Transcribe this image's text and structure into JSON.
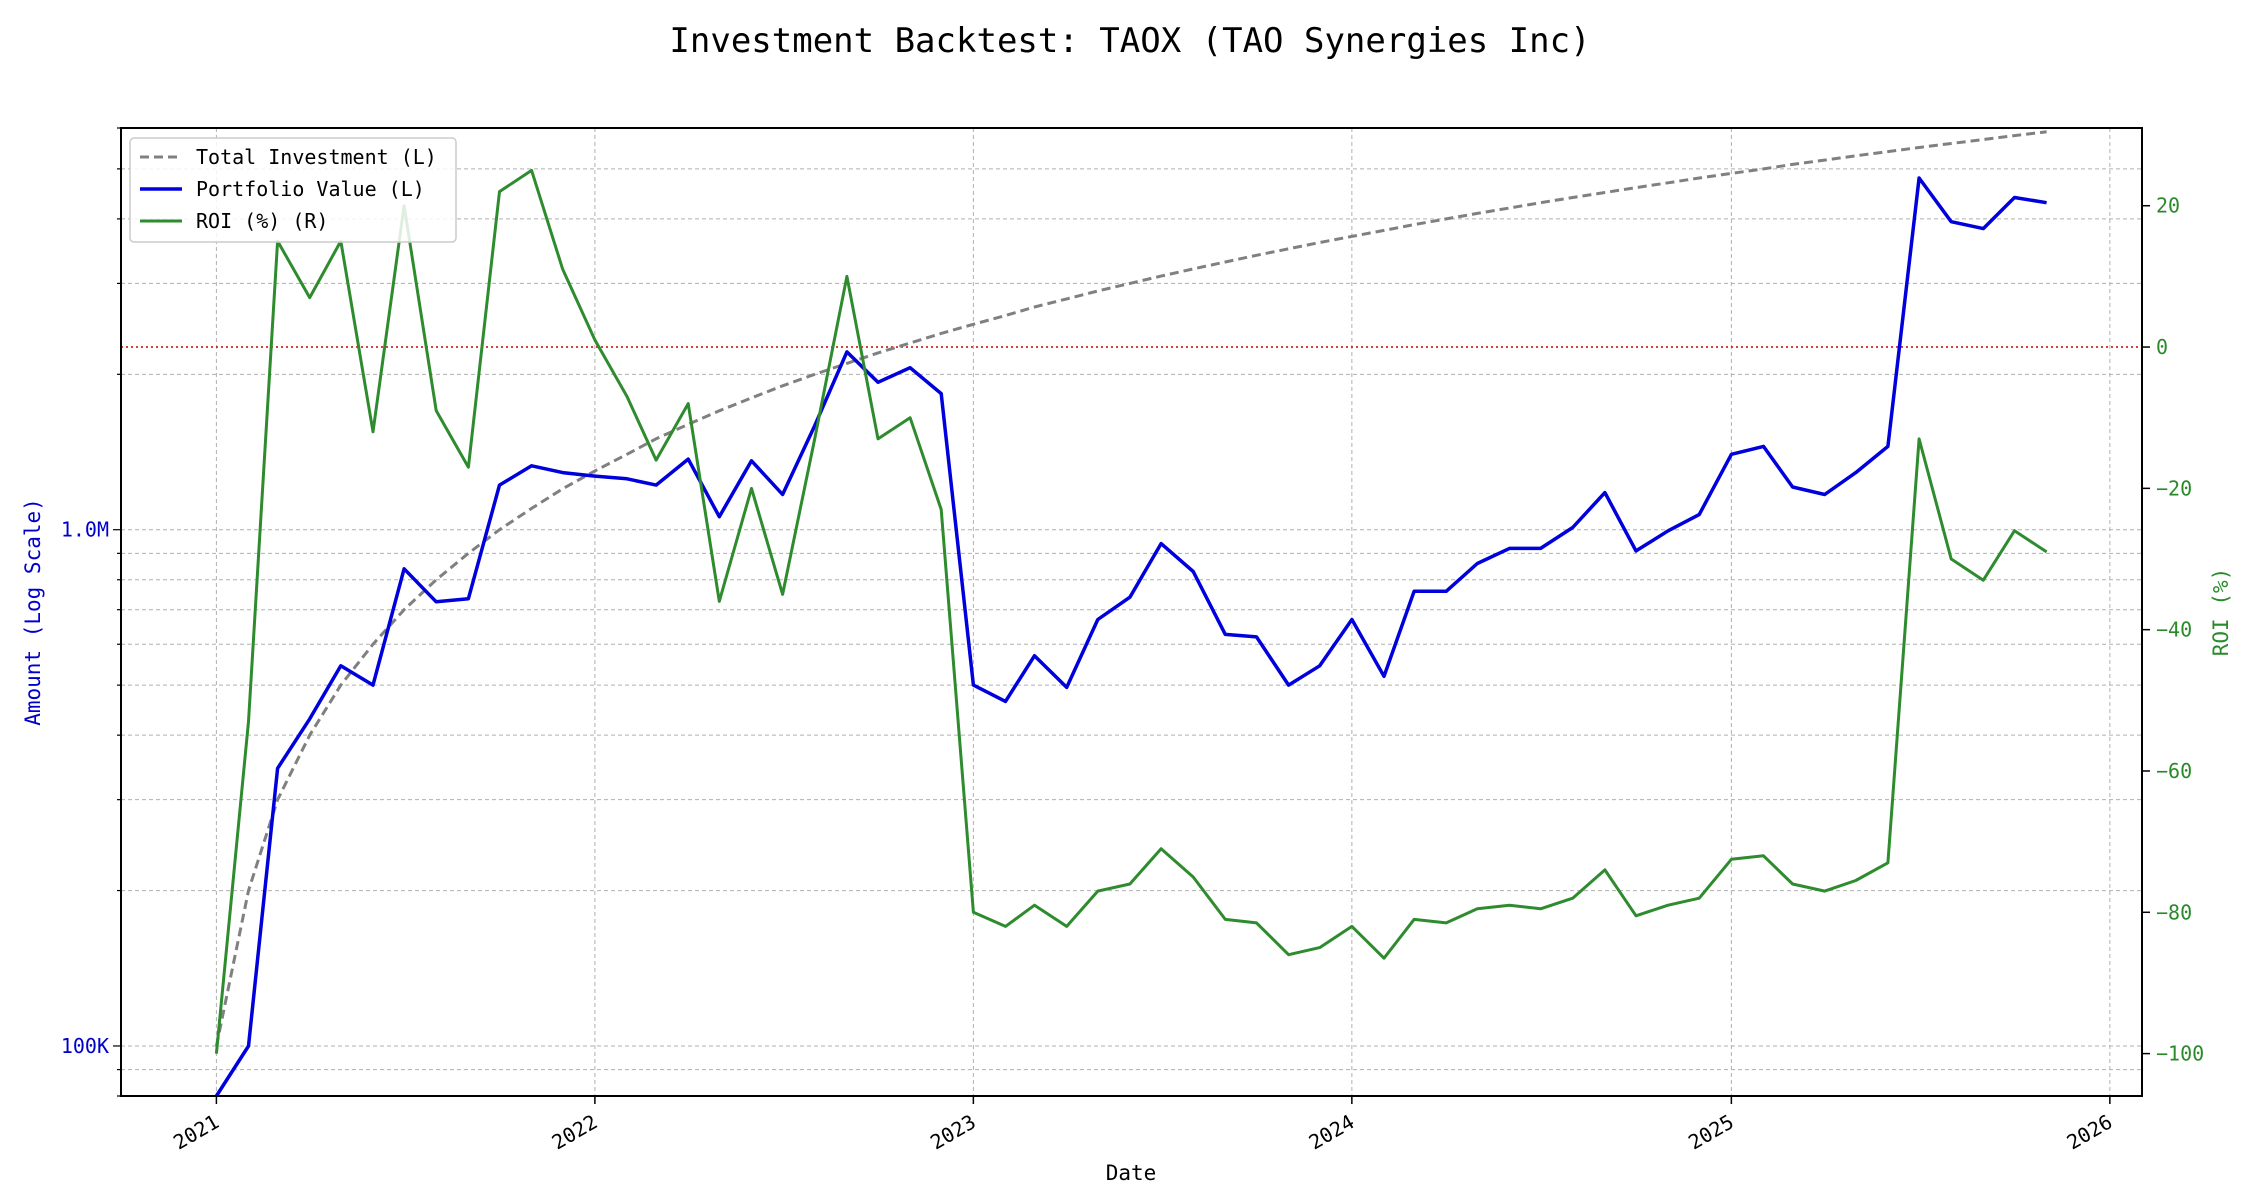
{
  "chart_data": {
    "type": "line",
    "title": "Investment Backtest: TAOX (TAO Synergies Inc)",
    "xlabel": "Date",
    "ylabel_left": "Amount (Log Scale)",
    "ylabel_right": "ROI (%)",
    "left_axis": {
      "scale": "log",
      "range": [
        80000,
        6000000
      ],
      "ticks": [
        {
          "value": 100000,
          "label": "100K"
        },
        {
          "value": 1000000,
          "label": "1.0M"
        }
      ]
    },
    "right_axis": {
      "scale": "linear",
      "range": [
        -106,
        31
      ],
      "ticks": [
        {
          "value": -100,
          "label": "−100"
        },
        {
          "value": -80,
          "label": "−80"
        },
        {
          "value": -60,
          "label": "−60"
        },
        {
          "value": -40,
          "label": "−40"
        },
        {
          "value": -20,
          "label": "−20"
        },
        {
          "value": 0,
          "label": "0"
        },
        {
          "value": 20,
          "label": "20"
        }
      ]
    },
    "x_axis": {
      "range": [
        "2020-10-01",
        "2026-02-01"
      ],
      "ticks": [
        {
          "value": "2021-01-01",
          "label": "2021"
        },
        {
          "value": "2022-01-01",
          "label": "2022"
        },
        {
          "value": "2023-01-01",
          "label": "2023"
        },
        {
          "value": "2024-01-01",
          "label": "2024"
        },
        {
          "value": "2025-01-01",
          "label": "2025"
        },
        {
          "value": "2026-01-01",
          "label": "2026"
        }
      ]
    },
    "grid": true,
    "legend_position": "top-left",
    "reference_line": {
      "axis": "right",
      "value": 0,
      "color": "#cc0000"
    },
    "x": [
      "2021-01-01",
      "2021-02-01",
      "2021-03-01",
      "2021-04-01",
      "2021-05-01",
      "2021-06-01",
      "2021-07-01",
      "2021-08-01",
      "2021-09-01",
      "2021-10-01",
      "2021-11-01",
      "2021-12-01",
      "2022-01-01",
      "2022-02-01",
      "2022-03-01",
      "2022-04-01",
      "2022-05-01",
      "2022-06-01",
      "2022-07-01",
      "2022-08-01",
      "2022-09-01",
      "2022-10-01",
      "2022-11-01",
      "2022-12-01",
      "2023-01-01",
      "2023-02-01",
      "2023-03-01",
      "2023-04-01",
      "2023-05-01",
      "2023-06-01",
      "2023-07-01",
      "2023-08-01",
      "2023-09-01",
      "2023-10-01",
      "2023-11-01",
      "2023-12-01",
      "2024-01-01",
      "2024-02-01",
      "2024-03-01",
      "2024-04-01",
      "2024-05-01",
      "2024-06-01",
      "2024-07-01",
      "2024-08-01",
      "2024-09-01",
      "2024-10-01",
      "2024-11-01",
      "2024-12-01",
      "2025-01-01",
      "2025-02-01",
      "2025-03-01",
      "2025-04-01",
      "2025-05-01",
      "2025-06-01",
      "2025-07-01",
      "2025-08-01",
      "2025-09-01",
      "2025-10-01",
      "2025-11-01"
    ],
    "series": [
      {
        "name": "Total Investment (L)",
        "axis": "left",
        "color": "#808080",
        "style": "dashed",
        "values": [
          100000,
          200000,
          300000,
          400000,
          500000,
          600000,
          700000,
          800000,
          900000,
          1000000,
          1100000,
          1200000,
          1300000,
          1400000,
          1500000,
          1600000,
          1700000,
          1800000,
          1900000,
          2000000,
          2100000,
          2200000,
          2300000,
          2400000,
          2500000,
          2600000,
          2700000,
          2800000,
          2900000,
          3000000,
          3100000,
          3200000,
          3300000,
          3400000,
          3500000,
          3600000,
          3700000,
          3800000,
          3900000,
          4000000,
          4100000,
          4200000,
          4300000,
          4400000,
          4500000,
          4600000,
          4700000,
          4800000,
          4900000,
          5000000,
          5100000,
          5200000,
          5300000,
          5400000,
          5500000,
          5600000,
          5700000,
          5800000,
          5900000
        ]
      },
      {
        "name": "Portfolio Value (L)",
        "axis": "left",
        "color": "#0000dd",
        "style": "solid",
        "values": [
          50000,
          100000,
          345000,
          430000,
          545000,
          500000,
          840000,
          725000,
          735000,
          1220000,
          1330000,
          1290000,
          1270000,
          1255000,
          1220000,
          1370000,
          1060000,
          1360000,
          1170000,
          1590000,
          2210000,
          1930000,
          2060000,
          1835000,
          500000,
          465000,
          570000,
          495000,
          670000,
          740000,
          940000,
          830000,
          627000,
          620000,
          500000,
          545000,
          670000,
          520000,
          760000,
          760000,
          860000,
          920000,
          920000,
          1010000,
          1180000,
          910000,
          995000,
          1070000,
          1400000,
          1450000,
          1210000,
          1170000,
          1290000,
          1450000,
          4800000,
          3950000,
          3830000,
          4400000,
          4300000
        ]
      },
      {
        "name": "ROI (%) (R)",
        "axis": "right",
        "color": "#2e8b2e",
        "style": "solid",
        "values": [
          -100,
          -53,
          15,
          7,
          15,
          -12,
          20,
          -9,
          -17,
          22,
          25,
          11,
          1,
          -7,
          -16,
          -8,
          -36,
          -20,
          -35,
          -13,
          10,
          -13,
          -10,
          -23,
          -80,
          -82,
          -79,
          -82,
          -77,
          -76,
          -71,
          -75,
          -81,
          -81.5,
          -86,
          -85,
          -82,
          -86.5,
          -81,
          -81.5,
          -79.5,
          -79,
          -79.5,
          -78,
          -74,
          -80.5,
          -79,
          -78,
          -72.5,
          -72,
          -76,
          -77,
          -75.5,
          -73,
          -13,
          -30,
          -33,
          -26,
          -29
        ]
      }
    ]
  }
}
